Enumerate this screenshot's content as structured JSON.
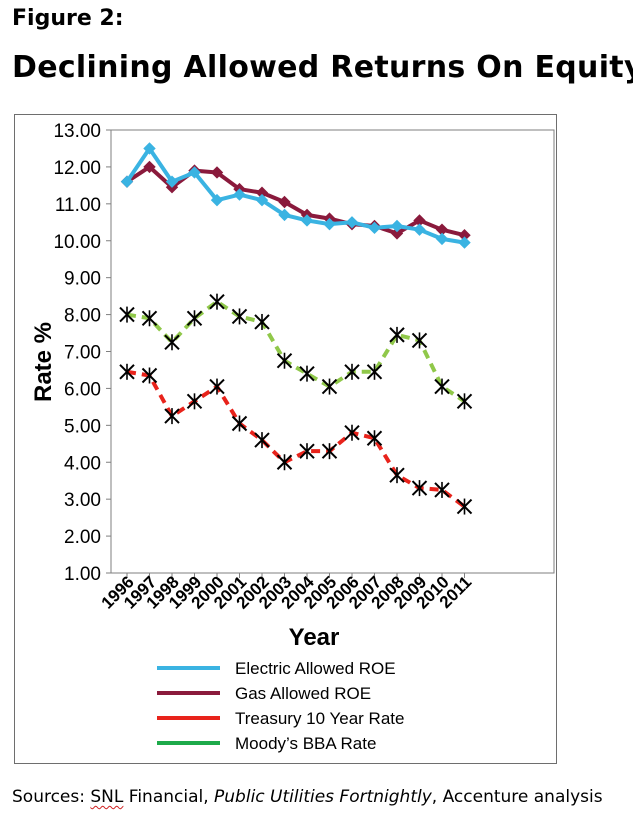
{
  "figure_label": "Figure 2:",
  "title": "Declining Allowed Returns On Equity",
  "sources": {
    "prefix": "Sources: ",
    "snl": "SNL",
    "financial": " Financial, ",
    "publication": "Public Utilities Fortnightly",
    "suffix": ", Accenture analysis"
  },
  "colors": {
    "electric": "#3ab3e2",
    "gas": "#8a1a3c",
    "treasury": "#e8231b",
    "moodys": "#90c84a",
    "moodys_legend": "#1daa4a",
    "marker_x": "#000000"
  },
  "chart_data": {
    "type": "line",
    "xlabel": "Year",
    "ylabel": "Rate %",
    "ylim": [
      1,
      13
    ],
    "yticks": [
      "13.00",
      "12.00",
      "11.00",
      "10.00",
      "9.00",
      "8.00",
      "7.00",
      "6.00",
      "5.00",
      "4.00",
      "3.00",
      "2.00",
      "1.00"
    ],
    "categories": [
      "1996",
      "1997",
      "1998",
      "1999",
      "2000",
      "2001",
      "2002",
      "2003",
      "2004",
      "2005",
      "2006",
      "2007",
      "2008",
      "2009",
      "2010",
      "2011"
    ],
    "legend_position": "bottom",
    "series": [
      {
        "name": "Electric Allowed  ROE",
        "key": "electric",
        "style": "solid",
        "marker": "diamond",
        "values": [
          11.6,
          12.5,
          11.6,
          11.85,
          11.1,
          11.25,
          11.1,
          10.7,
          10.55,
          10.45,
          10.5,
          10.35,
          10.4,
          10.3,
          10.05,
          9.95
        ]
      },
      {
        "name": "Gas Allowed  ROE",
        "key": "gas",
        "style": "solid",
        "marker": "diamond",
        "values": [
          11.6,
          12.0,
          11.45,
          11.9,
          11.85,
          11.4,
          11.3,
          11.05,
          10.7,
          10.6,
          10.45,
          10.4,
          10.2,
          10.55,
          10.3,
          10.15
        ]
      },
      {
        "name": "Treasury  10 Year Rate",
        "key": "treasury",
        "style": "dashed",
        "marker": "x",
        "values": [
          6.45,
          6.35,
          5.25,
          5.65,
          6.05,
          5.05,
          4.6,
          4.0,
          4.3,
          4.3,
          4.8,
          4.65,
          3.65,
          3.3,
          3.25,
          2.8
        ]
      },
      {
        "name": "Moody’s BBA Rate",
        "key": "moodys",
        "style": "dashed",
        "marker": "x",
        "values": [
          8.0,
          7.9,
          7.25,
          7.9,
          8.35,
          7.95,
          7.8,
          6.75,
          6.4,
          6.05,
          6.45,
          6.45,
          7.45,
          7.3,
          6.05,
          5.65
        ]
      }
    ]
  }
}
